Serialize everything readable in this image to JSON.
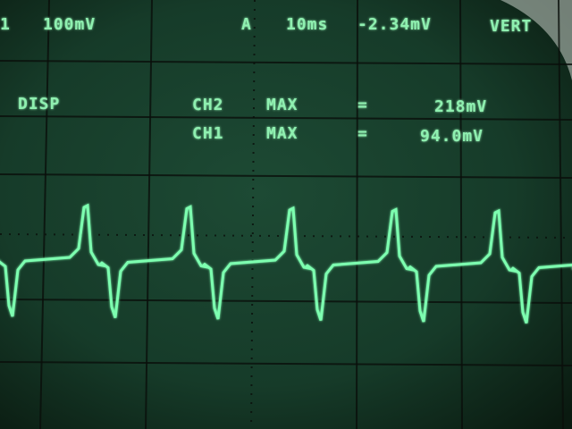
{
  "status": {
    "channel": "1",
    "scale": "100mV",
    "trigger": "A",
    "timebase": "10ms",
    "level": "-2.34mV",
    "mode": "VERT"
  },
  "display_label": "DISP",
  "measurements": [
    {
      "channel": "CH2",
      "type": "MAX",
      "equals": "=",
      "value": "218mV"
    },
    {
      "channel": "CH1",
      "type": "MAX",
      "equals": "=",
      "value": "94.0mV"
    }
  ]
}
